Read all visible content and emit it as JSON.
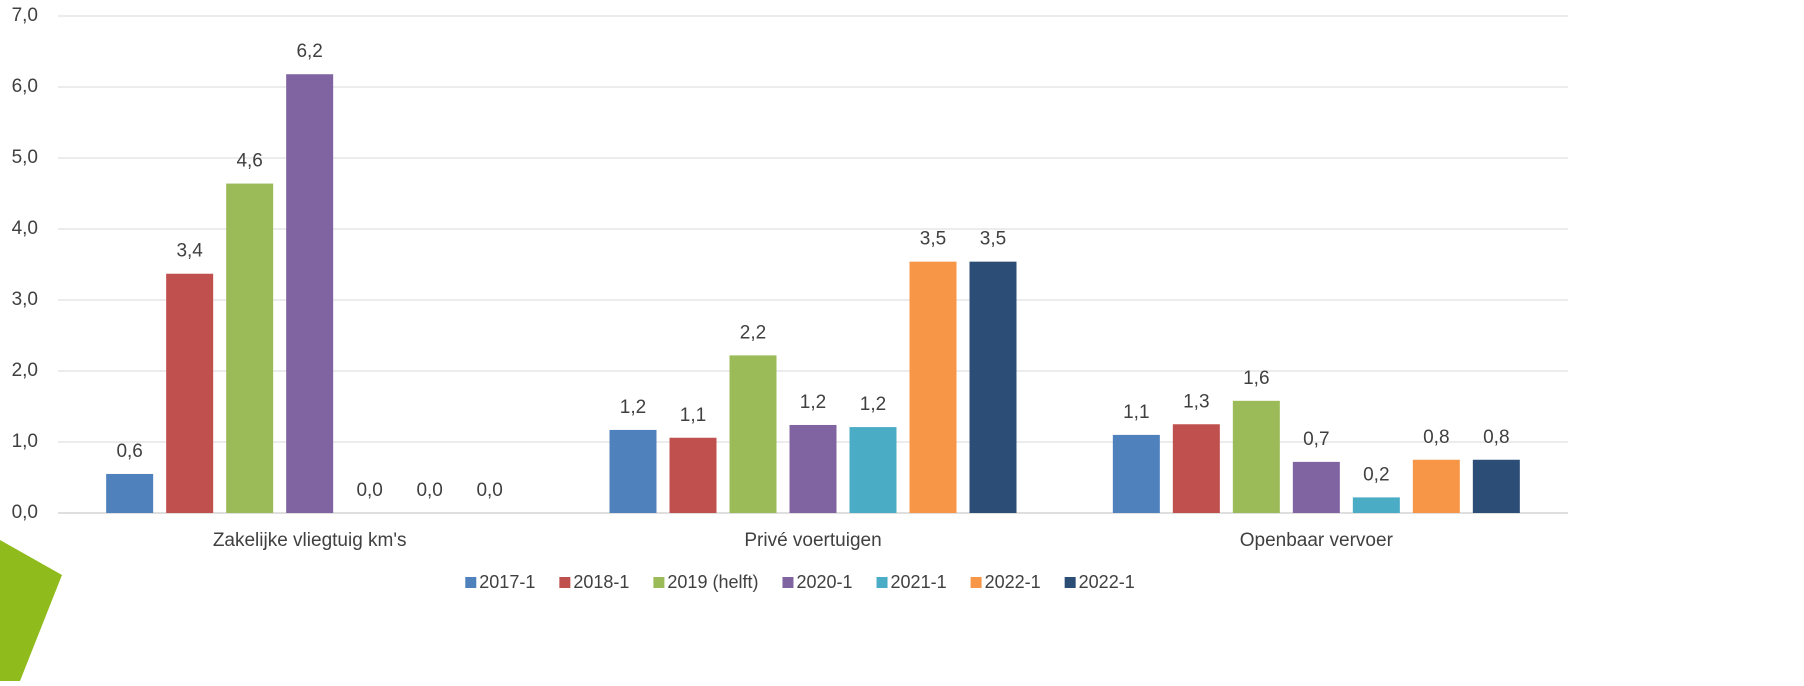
{
  "chart_data": {
    "type": "bar",
    "categories": [
      "Zakelijke vliegtuig km's",
      "Privé voertuigen",
      "Openbaar vervoer"
    ],
    "series": [
      {
        "name": "2017-1",
        "color": "#4f81bd",
        "values": [
          0.55,
          1.17,
          1.1
        ],
        "value_labels": [
          "0,6",
          "1,2",
          "1,1"
        ]
      },
      {
        "name": "2018-1",
        "color": "#c0504d",
        "values": [
          3.37,
          1.06,
          1.25
        ],
        "value_labels": [
          "3,4",
          "1,1",
          "1,3"
        ]
      },
      {
        "name": "2019 (helft)",
        "color": "#9bbb59",
        "values": [
          4.64,
          2.22,
          1.58
        ],
        "value_labels": [
          "4,6",
          "2,2",
          "1,6"
        ]
      },
      {
        "name": "2020-1",
        "color": "#8064a2",
        "values": [
          6.18,
          1.24,
          0.72
        ],
        "value_labels": [
          "6,2",
          "1,2",
          "0,7"
        ]
      },
      {
        "name": "2021-1",
        "color": "#4bacc6",
        "values": [
          0,
          1.21,
          0.22
        ],
        "value_labels": [
          "0,0",
          "1,2",
          "0,2"
        ]
      },
      {
        "name": "2022-1",
        "color": "#f79646",
        "values": [
          0,
          3.54,
          0.75
        ],
        "value_labels": [
          "0,0",
          "3,5",
          "0,8"
        ]
      },
      {
        "name": "2022-1",
        "color": "#2c4d75",
        "values": [
          0,
          3.54,
          0.75
        ],
        "value_labels": [
          "0,0",
          "3,5",
          "0,8"
        ]
      }
    ],
    "ylim": [
      0,
      7
    ],
    "yticks": [
      {
        "value": 0,
        "label": "0,0"
      },
      {
        "value": 1,
        "label": "1,0"
      },
      {
        "value": 2,
        "label": "2,0"
      },
      {
        "value": 3,
        "label": "3,0"
      },
      {
        "value": 4,
        "label": "4,0"
      },
      {
        "value": 5,
        "label": "5,0"
      },
      {
        "value": 6,
        "label": "6,0"
      },
      {
        "value": 7,
        "label": "7,0"
      }
    ],
    "grid": true,
    "legend": "bottom"
  }
}
